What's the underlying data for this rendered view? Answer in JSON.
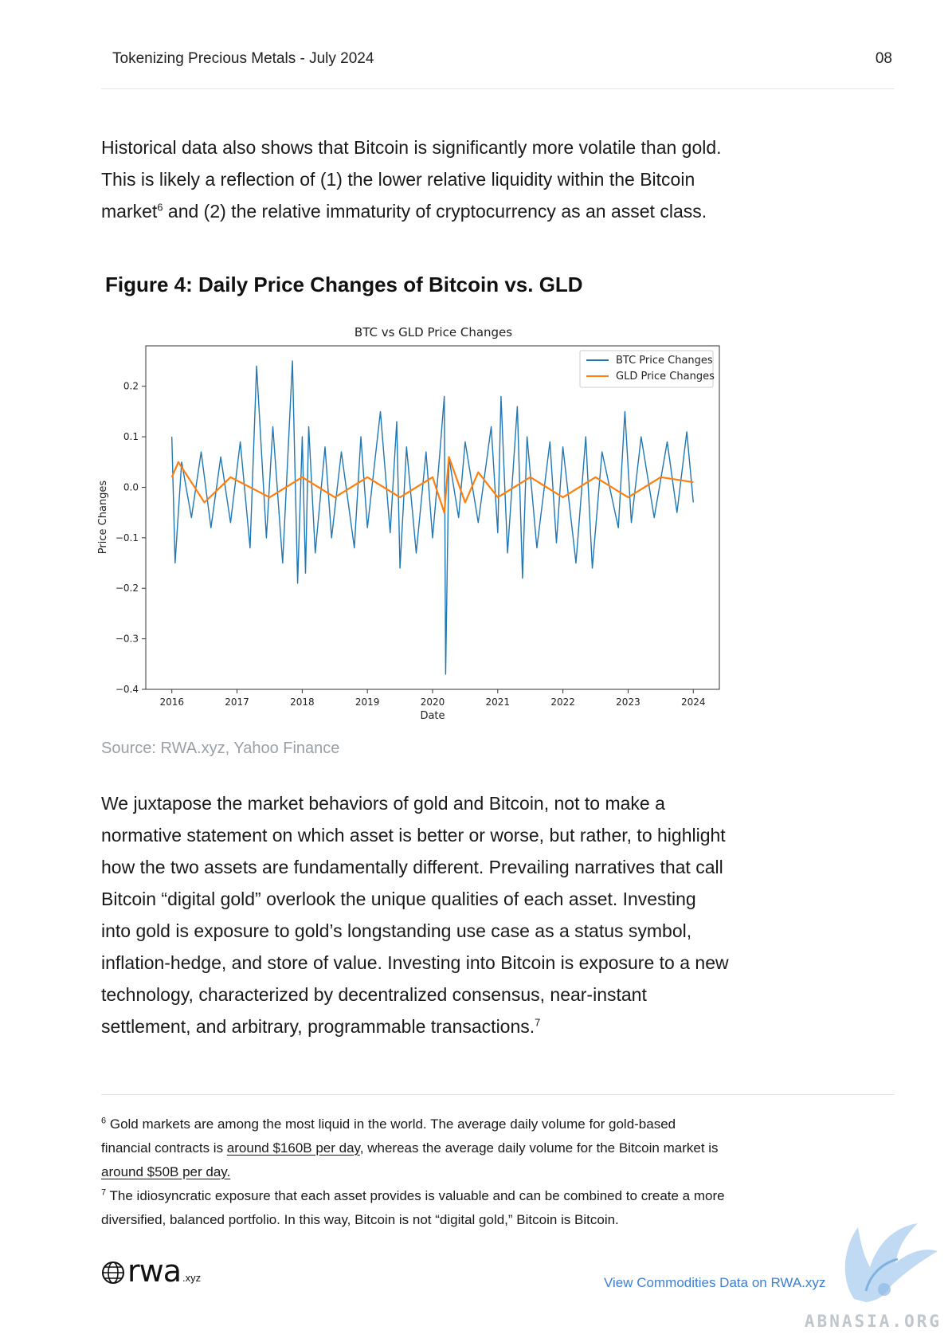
{
  "header": {
    "title": "Tokenizing Precious Metals - July 2024",
    "page_number": "08"
  },
  "intro": {
    "line1": "Historical data also shows that Bitcoin is significantly more volatile than gold.",
    "line2": "This is likely a reflection of (1) the lower relative liquidity within the Bitcoin",
    "line3_before": "market",
    "line3_sup": "6",
    "line3_after": " and (2) the relative immaturity of cryptocurrency as an asset class."
  },
  "figure": {
    "title": "Figure 4: Daily Price Changes of Bitcoin vs. GLD",
    "source": "Source: RWA.xyz, Yahoo Finance"
  },
  "chart_data": {
    "type": "line",
    "title": "BTC vs GLD Price Changes",
    "xlabel": "Date",
    "ylabel": "Price Changes",
    "xlim": [
      2015.6,
      2024.4
    ],
    "ylim": [
      -0.4,
      0.28
    ],
    "x_ticks": [
      "2016",
      "2017",
      "2018",
      "2019",
      "2020",
      "2021",
      "2022",
      "2023",
      "2024"
    ],
    "y_ticks": [
      0.2,
      0.1,
      0.0,
      -0.1,
      -0.2,
      -0.3,
      -0.4
    ],
    "y_tick_labels": [
      "0.2",
      "0.1",
      "0.0",
      "−0.1",
      "−0.2",
      "−0.3",
      "−0.4"
    ],
    "grid": false,
    "legend": "top-right",
    "series": [
      {
        "name": "BTC Price Changes",
        "color": "#1f77b4",
        "x": [
          2016.0,
          2016.05,
          2016.15,
          2016.3,
          2016.45,
          2016.6,
          2016.75,
          2016.9,
          2017.05,
          2017.2,
          2017.3,
          2017.45,
          2017.55,
          2017.7,
          2017.85,
          2017.93,
          2018.0,
          2018.05,
          2018.1,
          2018.2,
          2018.35,
          2018.45,
          2018.6,
          2018.8,
          2018.9,
          2019.0,
          2019.2,
          2019.35,
          2019.45,
          2019.5,
          2019.6,
          2019.75,
          2019.9,
          2020.0,
          2020.1,
          2020.18,
          2020.2,
          2020.25,
          2020.4,
          2020.5,
          2020.7,
          2020.9,
          2021.0,
          2021.05,
          2021.15,
          2021.3,
          2021.38,
          2021.45,
          2021.6,
          2021.8,
          2021.9,
          2022.0,
          2022.2,
          2022.35,
          2022.45,
          2022.6,
          2022.85,
          2022.95,
          2023.05,
          2023.2,
          2023.4,
          2023.6,
          2023.75,
          2023.9,
          2024.0
        ],
        "y": [
          0.1,
          -0.15,
          0.05,
          -0.06,
          0.07,
          -0.08,
          0.06,
          -0.07,
          0.09,
          -0.12,
          0.24,
          -0.1,
          0.12,
          -0.15,
          0.25,
          -0.19,
          0.1,
          -0.17,
          0.12,
          -0.13,
          0.08,
          -0.1,
          0.07,
          -0.12,
          0.1,
          -0.08,
          0.15,
          -0.09,
          0.13,
          -0.16,
          0.08,
          -0.13,
          0.07,
          -0.1,
          0.05,
          0.18,
          -0.37,
          0.06,
          -0.06,
          0.09,
          -0.07,
          0.12,
          -0.09,
          0.18,
          -0.13,
          0.16,
          -0.18,
          0.1,
          -0.12,
          0.09,
          -0.11,
          0.08,
          -0.15,
          0.1,
          -0.16,
          0.07,
          -0.08,
          0.15,
          -0.07,
          0.1,
          -0.06,
          0.09,
          -0.05,
          0.11,
          -0.03
        ]
      },
      {
        "name": "GLD Price Changes",
        "color": "#ff7f0e",
        "x": [
          2016.0,
          2016.1,
          2016.5,
          2016.9,
          2017.5,
          2018.0,
          2018.5,
          2019.0,
          2019.5,
          2020.0,
          2020.18,
          2020.25,
          2020.5,
          2020.7,
          2021.0,
          2021.5,
          2022.0,
          2022.5,
          2023.0,
          2023.5,
          2024.0
        ],
        "y": [
          0.02,
          0.05,
          -0.03,
          0.02,
          -0.02,
          0.02,
          -0.02,
          0.02,
          -0.02,
          0.02,
          -0.05,
          0.06,
          -0.03,
          0.03,
          -0.02,
          0.02,
          -0.02,
          0.02,
          -0.02,
          0.02,
          0.01
        ]
      }
    ]
  },
  "body": {
    "lines": [
      "We juxtapose the market behaviors of gold and Bitcoin, not to make a",
      "normative statement on which asset is better or worse, but rather, to highlight",
      "how the two assets are fundamentally different. Prevailing narratives that call",
      "Bitcoin “digital gold” overlook the unique qualities of each asset. Investing",
      "into gold is exposure to gold’s longstanding use case as a status symbol,",
      "inflation-hedge, and store of value. Investing into Bitcoin is exposure to a new",
      "technology, characterized by decentralized consensus, near-instant"
    ],
    "last_line": "settlement, and arbitrary, programmable transactions.",
    "last_sup": "7"
  },
  "footnotes": {
    "fn6": {
      "mark": "6",
      "line1": " Gold markets are among the most liquid in the world. The average daily volume for gold-based",
      "line2_before": "financial contracts is ",
      "line2_link": "around $160B per day",
      "line2_after": ", whereas the average daily volume for the Bitcoin market is",
      "line3_link": "around $50B per day."
    },
    "fn7": {
      "mark": "7",
      "line1": " The idiosyncratic exposure that each asset provides is valuable and can be combined to create a more",
      "line2": "diversified, balanced portfolio. In this way, Bitcoin is not “digital gold,” Bitcoin is Bitcoin."
    }
  },
  "footer": {
    "logo_word": "rwa",
    "logo_suffix": ".xyz",
    "link": "View Commodities Data on RWA.xyz",
    "watermark": "ABNASIA.ORG"
  }
}
